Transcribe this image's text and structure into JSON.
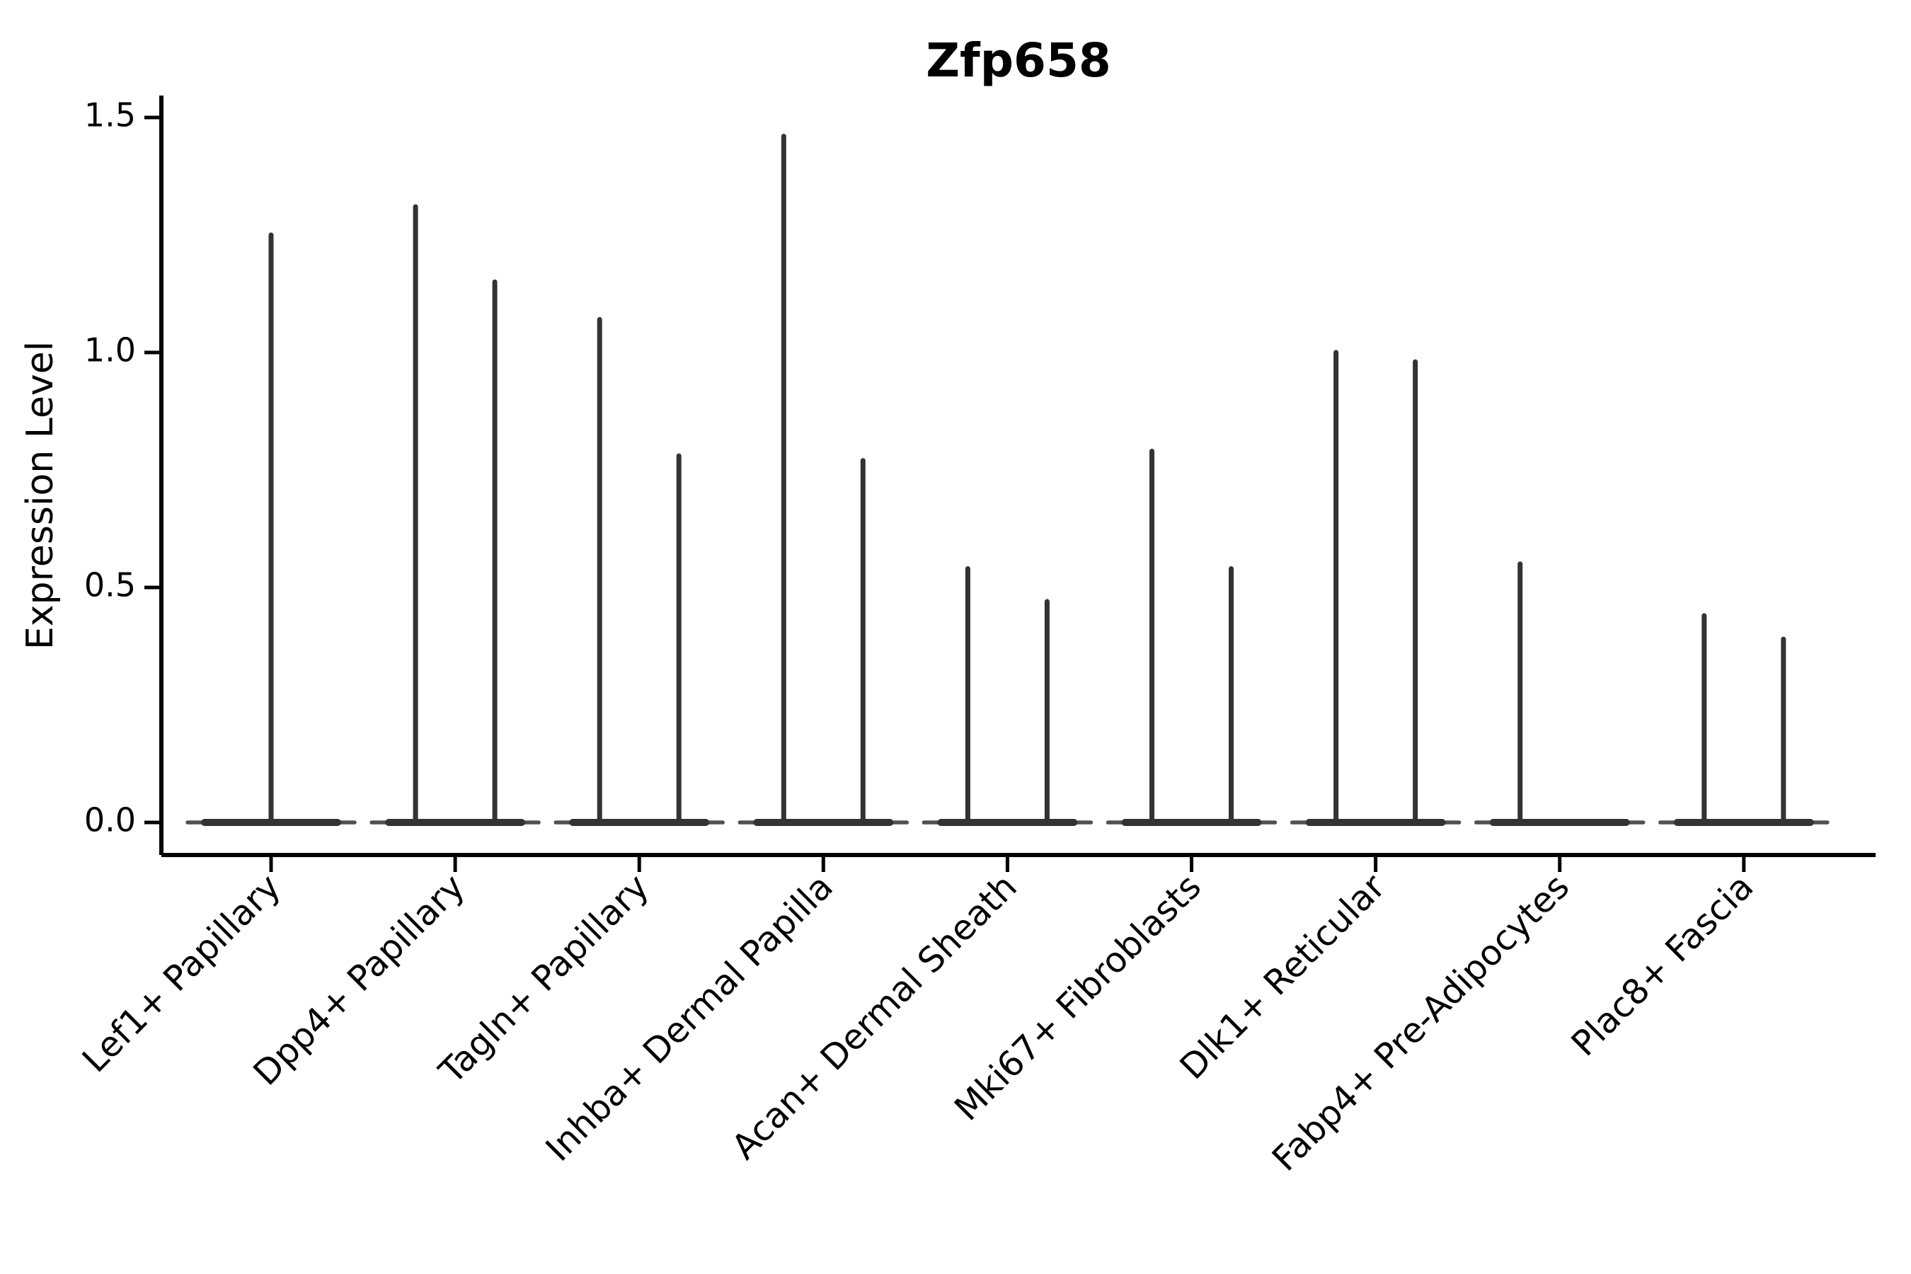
{
  "chart_data": {
    "type": "violin",
    "title": "Zfp658",
    "ylabel": "Expression Level",
    "xlabel": "",
    "yticks": [
      0.0,
      0.5,
      1.0,
      1.5
    ],
    "ytick_labels": [
      "0.0",
      "0.5",
      "1.0",
      "1.5"
    ],
    "ylim": [
      -0.07,
      1.57
    ],
    "grid": false,
    "legend": null,
    "background": "#ffffff",
    "axis_color": "#000000",
    "violin_line_color": "#333333",
    "categories": [
      "Lef1+ Papillary",
      "Dpp4+ Papillary",
      "Tagln+ Papillary",
      "Inhba+ Dermal Papilla",
      "Acan+ Dermal Sheath",
      "Mki67+ Fibroblasts",
      "Dlk1+ Reticular",
      "Fabp4+ Pre-Adipocytes",
      "Plac8+ Fascia"
    ],
    "violins": [
      {
        "category": "Lef1+ Papillary",
        "baseline_value": 0.0,
        "max_spikes": [
          {
            "offset": "center",
            "value": 1.25
          }
        ]
      },
      {
        "category": "Dpp4+ Papillary",
        "baseline_value": 0.0,
        "max_spikes": [
          {
            "offset": "left",
            "value": 1.31
          },
          {
            "offset": "right",
            "value": 1.15
          }
        ]
      },
      {
        "category": "Tagln+ Papillary",
        "baseline_value": 0.0,
        "max_spikes": [
          {
            "offset": "left",
            "value": 1.07
          },
          {
            "offset": "right",
            "value": 0.78
          }
        ]
      },
      {
        "category": "Inhba+ Dermal Papilla",
        "baseline_value": 0.0,
        "max_spikes": [
          {
            "offset": "left",
            "value": 1.46
          },
          {
            "offset": "right",
            "value": 0.77
          }
        ]
      },
      {
        "category": "Acan+ Dermal Sheath",
        "baseline_value": 0.0,
        "max_spikes": [
          {
            "offset": "left",
            "value": 0.54
          },
          {
            "offset": "right",
            "value": 0.47
          }
        ]
      },
      {
        "category": "Mki67+ Fibroblasts",
        "baseline_value": 0.0,
        "max_spikes": [
          {
            "offset": "left",
            "value": 0.79
          },
          {
            "offset": "right",
            "value": 0.54
          }
        ]
      },
      {
        "category": "Dlk1+ Reticular",
        "baseline_value": 0.0,
        "max_spikes": [
          {
            "offset": "left",
            "value": 1.0
          },
          {
            "offset": "right",
            "value": 0.98
          }
        ]
      },
      {
        "category": "Fabp4+ Pre-Adipocytes",
        "baseline_value": 0.0,
        "max_spikes": [
          {
            "offset": "left",
            "value": 0.55
          }
        ]
      },
      {
        "category": "Plac8+ Fascia",
        "baseline_value": 0.0,
        "max_spikes": [
          {
            "offset": "left",
            "value": 0.44
          },
          {
            "offset": "right",
            "value": 0.39
          }
        ]
      }
    ]
  }
}
